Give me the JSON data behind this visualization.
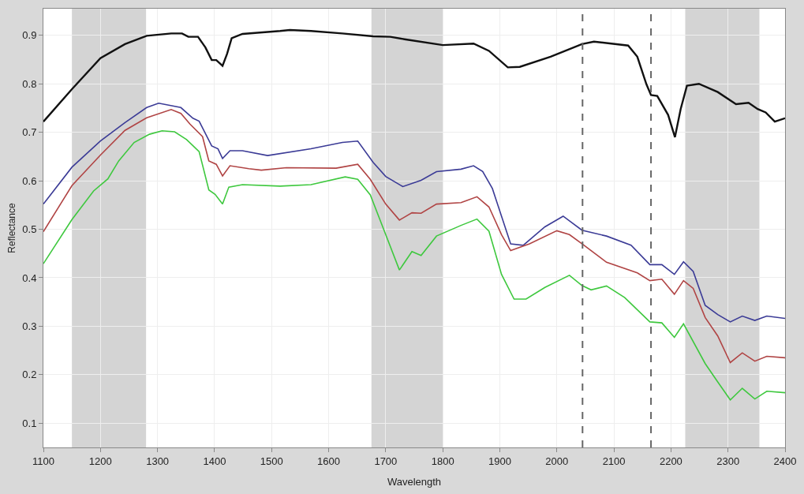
{
  "chart_data": {
    "type": "line",
    "xlabel": "Wavelength",
    "ylabel": "Reflectance",
    "xlim": [
      1100,
      2400
    ],
    "ylim": [
      0.05,
      0.955
    ],
    "xticks": [
      1100,
      1200,
      1300,
      1400,
      1500,
      1600,
      1700,
      1800,
      1900,
      2000,
      2100,
      2200,
      2300,
      2400
    ],
    "yticks": [
      0.1,
      0.2,
      0.3,
      0.4,
      0.5,
      0.6,
      0.7,
      0.8,
      0.9
    ],
    "grid": true,
    "marker": "none",
    "line_style": "solid",
    "bands": [
      {
        "axis": "x",
        "from": 1150,
        "to": 1280,
        "color": "#d4d4d4"
      },
      {
        "axis": "x",
        "from": 1675,
        "to": 1800,
        "color": "#d4d4d4"
      },
      {
        "axis": "x",
        "from": 2225,
        "to": 2355,
        "color": "#d4d4d4"
      }
    ],
    "ref_lines": [
      {
        "axis": "x",
        "value": 2045,
        "color": "#666666",
        "line_style": "dashed"
      },
      {
        "axis": "x",
        "value": 2165,
        "color": "#666666",
        "line_style": "dashed"
      }
    ],
    "series": [
      {
        "color": "#111111",
        "x": [
          1100,
          1150,
          1200,
          1243,
          1281,
          1324,
          1343,
          1354,
          1371,
          1384,
          1395,
          1403,
          1414,
          1422,
          1430,
          1449,
          1515,
          1532,
          1569,
          1624,
          1678,
          1708,
          1733,
          1800,
          1854,
          1881,
          1914,
          1935,
          1989,
          2044,
          2065,
          2125,
          2141,
          2157,
          2165,
          2176,
          2195,
          2207,
          2217,
          2228,
          2249,
          2282,
          2314,
          2336,
          2352,
          2366,
          2382,
          2400
        ],
        "values": [
          0.722,
          0.789,
          0.853,
          0.882,
          0.899,
          0.904,
          0.904,
          0.897,
          0.897,
          0.875,
          0.849,
          0.849,
          0.837,
          0.862,
          0.894,
          0.903,
          0.909,
          0.911,
          0.909,
          0.904,
          0.898,
          0.897,
          0.892,
          0.88,
          0.883,
          0.868,
          0.834,
          0.835,
          0.856,
          0.882,
          0.887,
          0.879,
          0.856,
          0.799,
          0.777,
          0.775,
          0.736,
          0.69,
          0.748,
          0.796,
          0.8,
          0.783,
          0.758,
          0.761,
          0.748,
          0.741,
          0.722,
          0.729
        ]
      },
      {
        "color": "#3b3b96",
        "x": [
          1100,
          1150,
          1200,
          1243,
          1281,
          1302,
          1341,
          1362,
          1373,
          1395,
          1406,
          1414,
          1427,
          1449,
          1493,
          1569,
          1624,
          1651,
          1678,
          1700,
          1730,
          1762,
          1789,
          1832,
          1854,
          1870,
          1887,
          1903,
          1919,
          1941,
          1979,
          2011,
          2044,
          2087,
          2130,
          2163,
          2184,
          2206,
          2222,
          2239,
          2260,
          2282,
          2304,
          2325,
          2347,
          2368,
          2400
        ],
        "values": [
          0.552,
          0.628,
          0.682,
          0.72,
          0.751,
          0.76,
          0.751,
          0.729,
          0.723,
          0.672,
          0.666,
          0.646,
          0.662,
          0.662,
          0.652,
          0.666,
          0.679,
          0.682,
          0.638,
          0.609,
          0.588,
          0.601,
          0.619,
          0.624,
          0.631,
          0.619,
          0.584,
          0.527,
          0.47,
          0.467,
          0.505,
          0.527,
          0.498,
          0.486,
          0.467,
          0.427,
          0.427,
          0.407,
          0.433,
          0.413,
          0.343,
          0.324,
          0.309,
          0.321,
          0.312,
          0.321,
          0.316
        ]
      },
      {
        "color": "#b04444",
        "x": [
          1100,
          1150,
          1200,
          1243,
          1281,
          1324,
          1341,
          1357,
          1379,
          1390,
          1403,
          1414,
          1427,
          1460,
          1482,
          1526,
          1613,
          1651,
          1673,
          1700,
          1724,
          1746,
          1762,
          1789,
          1832,
          1860,
          1881,
          1903,
          1919,
          1952,
          2000,
          2022,
          2044,
          2087,
          2141,
          2163,
          2184,
          2206,
          2222,
          2239,
          2260,
          2282,
          2304,
          2325,
          2347,
          2368,
          2400
        ],
        "values": [
          0.495,
          0.59,
          0.653,
          0.704,
          0.73,
          0.747,
          0.739,
          0.717,
          0.691,
          0.641,
          0.634,
          0.61,
          0.631,
          0.625,
          0.622,
          0.627,
          0.626,
          0.634,
          0.603,
          0.552,
          0.519,
          0.534,
          0.533,
          0.552,
          0.555,
          0.567,
          0.546,
          0.489,
          0.456,
          0.47,
          0.497,
          0.489,
          0.47,
          0.432,
          0.41,
          0.394,
          0.397,
          0.366,
          0.394,
          0.378,
          0.318,
          0.28,
          0.225,
          0.245,
          0.228,
          0.238,
          0.235
        ]
      },
      {
        "color": "#3ec83e",
        "x": [
          1100,
          1150,
          1188,
          1213,
          1232,
          1259,
          1286,
          1308,
          1330,
          1351,
          1373,
          1390,
          1401,
          1414,
          1425,
          1449,
          1515,
          1569,
          1629,
          1651,
          1673,
          1700,
          1724,
          1746,
          1762,
          1789,
          1832,
          1860,
          1881,
          1903,
          1925,
          1946,
          1979,
          2022,
          2044,
          2060,
          2087,
          2119,
          2163,
          2184,
          2206,
          2222,
          2260,
          2282,
          2304,
          2325,
          2347,
          2368,
          2400
        ],
        "values": [
          0.429,
          0.52,
          0.579,
          0.604,
          0.641,
          0.679,
          0.696,
          0.703,
          0.701,
          0.685,
          0.66,
          0.581,
          0.572,
          0.552,
          0.587,
          0.592,
          0.589,
          0.592,
          0.608,
          0.603,
          0.571,
          0.489,
          0.416,
          0.454,
          0.446,
          0.486,
          0.508,
          0.521,
          0.496,
          0.407,
          0.356,
          0.356,
          0.38,
          0.405,
          0.384,
          0.375,
          0.383,
          0.359,
          0.309,
          0.307,
          0.277,
          0.305,
          0.223,
          0.185,
          0.148,
          0.172,
          0.15,
          0.166,
          0.163
        ]
      }
    ]
  }
}
